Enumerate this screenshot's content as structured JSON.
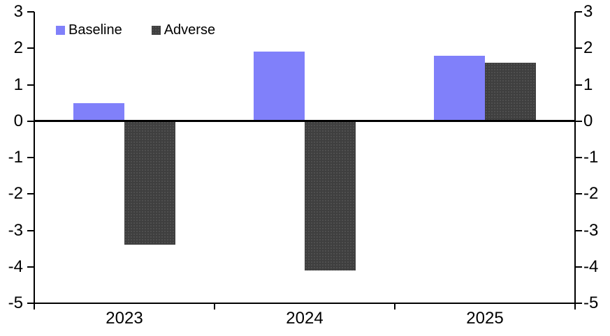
{
  "chart_data": {
    "type": "bar",
    "title": "",
    "xlabel": "",
    "ylabel": "",
    "categories": [
      "2023",
      "2024",
      "2025"
    ],
    "series": [
      {
        "name": "Baseline",
        "color": "#8080fa",
        "values": [
          0.5,
          1.9,
          1.8
        ]
      },
      {
        "name": "Adverse",
        "color": "#3f3f3f",
        "values": [
          -3.4,
          -4.1,
          1.6
        ]
      }
    ],
    "ylim": [
      -5,
      3
    ],
    "yticks": [
      "3",
      "2",
      "1",
      "0",
      "-1",
      "-2",
      "-3",
      "-4",
      "-5"
    ],
    "dual_axis": true,
    "grid": false,
    "legend_position": "top-left"
  },
  "colors": {
    "background": "#ffffff",
    "axis": "#000000",
    "text": "#000000",
    "baseline_bar": "#8080fa",
    "adverse_bar": "#3f3f3f",
    "adverse_dot": "#5a5a5a"
  }
}
